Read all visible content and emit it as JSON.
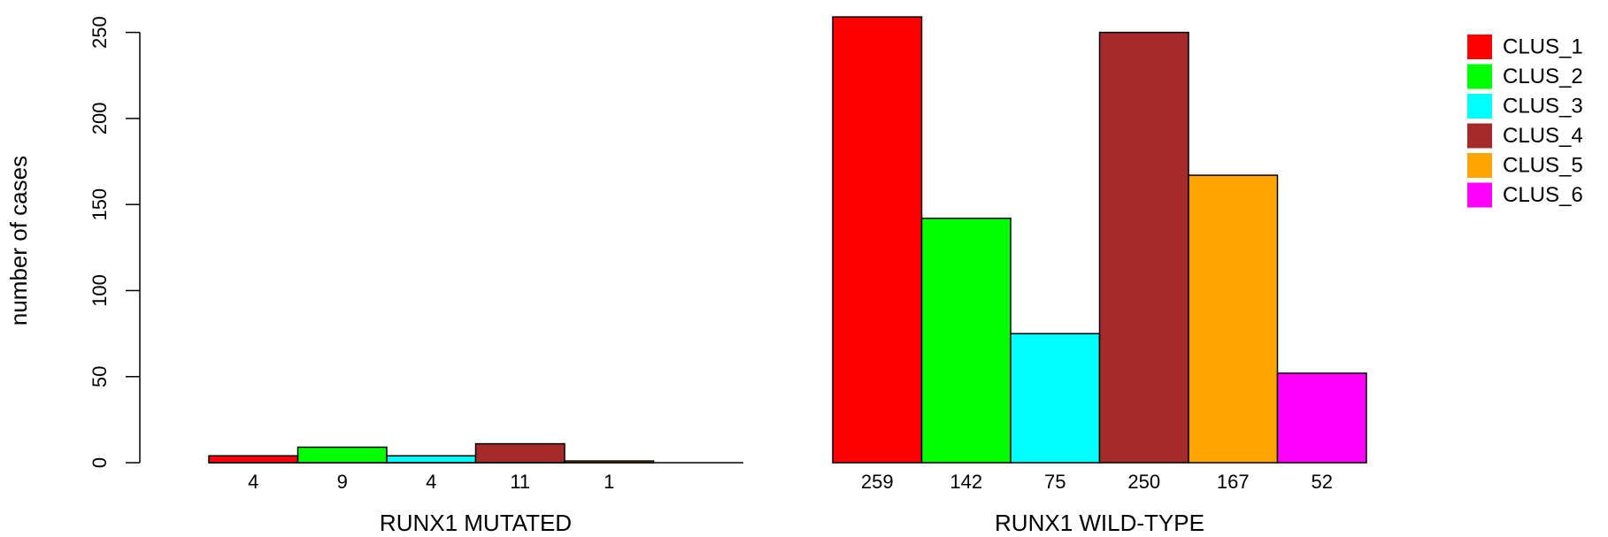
{
  "chart_data": {
    "type": "bar",
    "ylabel": "number of cases",
    "ylim": [
      0,
      260
    ],
    "yticks": [
      0,
      50,
      100,
      150,
      200,
      250
    ],
    "legend_placement": "top-right",
    "series": [
      {
        "name": "CLUS_1",
        "color": "#ff0000"
      },
      {
        "name": "CLUS_2",
        "color": "#00ff00"
      },
      {
        "name": "CLUS_3",
        "color": "#00ffff"
      },
      {
        "name": "CLUS_4",
        "color": "#a52a2a"
      },
      {
        "name": "CLUS_5",
        "color": "#ffa500"
      },
      {
        "name": "CLUS_6",
        "color": "#ff00ff"
      }
    ],
    "panels": [
      {
        "xlabel": "RUNX1 MUTATED",
        "values": [
          4,
          9,
          4,
          11,
          1,
          0
        ],
        "labels": [
          "4",
          "9",
          "4",
          "11",
          "1",
          ""
        ]
      },
      {
        "xlabel": "RUNX1 WILD-TYPE",
        "values": [
          259,
          142,
          75,
          250,
          167,
          52
        ],
        "labels": [
          "259",
          "142",
          "75",
          "250",
          "167",
          "52"
        ]
      }
    ]
  }
}
